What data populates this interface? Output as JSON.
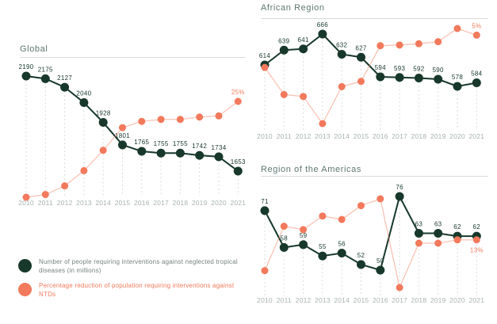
{
  "colors": {
    "green": "#17382b",
    "orange": "#f2795c",
    "grid": "#d9dddc",
    "axis_label": "#a6b3ae",
    "title": "#5e7672",
    "legend_text_primary": "#74847f"
  },
  "legend": {
    "items": [
      {
        "label": "Number of people requiring interventions against neglected tropical diseases (in millions)",
        "color_key": "green",
        "text_color": "#74847f"
      },
      {
        "label": "Percentage reduction of population requiring interventions against NTDs",
        "color_key": "orange",
        "text_color": "#f2795c"
      }
    ]
  },
  "chart_data": [
    {
      "id": "global",
      "type": "line",
      "title": "Global",
      "categories": [
        "2010",
        "2011",
        "2012",
        "2013",
        "2014",
        "2015",
        "2016",
        "2017",
        "2018",
        "2019",
        "2020",
        "2021"
      ],
      "series": [
        {
          "name": "Number of people requiring interventions against neglected tropical diseases (in millions)",
          "color_key": "green",
          "values": [
            2190,
            2175,
            2127,
            2040,
            1928,
            1801,
            1765,
            1755,
            1755,
            1742,
            1734,
            1653
          ],
          "point_labels": [
            "2190",
            "2175",
            "2127",
            "2040",
            "1928",
            "1801",
            "1765",
            "1755",
            "1755",
            "1742",
            "1734",
            "1653"
          ],
          "ylim": [
            1653,
            2190
          ]
        },
        {
          "name": "Percentage reduction of population requiring interventions against NTDs",
          "color_key": "orange",
          "values": [
            0,
            0.7,
            2.9,
            6.8,
            12,
            17.8,
            19.4,
            19.9,
            19.9,
            20.5,
            20.8,
            24.5
          ],
          "point_labels": [
            null,
            null,
            null,
            null,
            null,
            null,
            null,
            null,
            null,
            null,
            null,
            "25%"
          ],
          "ylim": [
            0,
            24.5
          ]
        }
      ]
    },
    {
      "id": "african",
      "type": "line",
      "title": "African Region",
      "categories": [
        "2010",
        "2011",
        "2012",
        "2013",
        "2014",
        "2015",
        "2016",
        "2017",
        "2018",
        "2019",
        "2020",
        "2021"
      ],
      "series": [
        {
          "name": "Number of people requiring interventions against neglected tropical diseases (in millions)",
          "color_key": "green",
          "values": [
            614,
            639,
            641,
            666,
            632,
            627,
            594,
            593,
            592,
            590,
            578,
            584
          ],
          "point_labels": [
            "614",
            "639",
            "641",
            "666",
            "632",
            "627",
            "594",
            "593",
            "592",
            "590",
            "578",
            "584"
          ],
          "ylim": [
            578,
            666
          ]
        },
        {
          "name": "Percentage reduction of population requiring interventions against NTDs",
          "color_key": "orange",
          "values": [
            0,
            -4.1,
            -4.4,
            -8.5,
            -2.9,
            -2.1,
            3.3,
            3.4,
            3.6,
            3.9,
            5.9,
            4.9
          ],
          "point_labels": [
            null,
            null,
            null,
            null,
            null,
            null,
            null,
            null,
            null,
            null,
            null,
            "5%"
          ],
          "ylim": [
            -8.5,
            5.9
          ]
        }
      ]
    },
    {
      "id": "americas",
      "type": "line",
      "title": "Region of the Americas",
      "categories": [
        "2010",
        "2011",
        "2012",
        "2013",
        "2014",
        "2015",
        "2016",
        "2017",
        "2018",
        "2019",
        "2020",
        "2021"
      ],
      "series": [
        {
          "name": "Number of people requiring interventions against neglected tropical diseases (in millions)",
          "color_key": "green",
          "values": [
            71,
            58,
            59,
            55,
            56,
            52,
            50,
            76,
            63,
            63,
            62,
            62
          ],
          "point_labels": [
            "71",
            "58",
            "59",
            "55",
            "56",
            "52",
            "50",
            "76",
            "63",
            "63",
            "62",
            "62"
          ],
          "ylim": [
            50,
            76
          ]
        },
        {
          "name": "Percentage reduction of population requiring interventions against NTDs",
          "color_key": "orange",
          "values": [
            0,
            18.3,
            16.9,
            22.5,
            21.1,
            26.8,
            29.6,
            -7,
            11.3,
            11.3,
            12.7,
            12.7
          ],
          "point_labels": [
            null,
            null,
            null,
            null,
            null,
            null,
            null,
            null,
            null,
            null,
            null,
            "13%"
          ],
          "ylim": [
            -7,
            29.6
          ]
        }
      ]
    }
  ]
}
